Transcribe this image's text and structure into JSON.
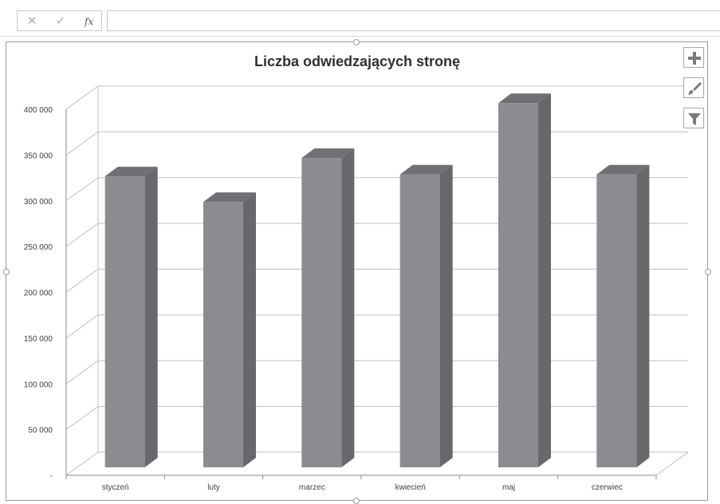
{
  "formula_bar": {
    "cancel_icon": "close-icon",
    "enter_icon": "checkmark-icon",
    "fx_label": "fx",
    "value": ""
  },
  "chart_tools": [
    {
      "name": "chart-elements-button",
      "icon": "plus-icon"
    },
    {
      "name": "chart-styles-button",
      "icon": "brush-icon"
    },
    {
      "name": "chart-filters-button",
      "icon": "funnel-icon"
    }
  ],
  "colors": {
    "bar_front": "#8c8c90",
    "bar_top": "#707074",
    "bar_side": "#68686c",
    "grid": "#bfbfbf",
    "text": "#404040"
  },
  "chart_data": {
    "type": "bar",
    "subtype": "3d-column",
    "title": "Liczba odwiedzających stronę",
    "categories": [
      "styczeń",
      "luty",
      "marzec",
      "kwiecień",
      "maj",
      "czerwiec"
    ],
    "values": [
      318000,
      290000,
      338000,
      320000,
      398000,
      320000
    ],
    "ylim": [
      0,
      400000
    ],
    "ytick_values": [
      0,
      50000,
      100000,
      150000,
      200000,
      250000,
      300000,
      350000,
      400000
    ],
    "ytick_labels": [
      "-",
      "50 000",
      "100 000",
      "150 000",
      "200 000",
      "250 000",
      "300 000",
      "350 000",
      "400 000"
    ],
    "xlabel": "",
    "ylabel": "",
    "grid": true,
    "legend": "none"
  }
}
